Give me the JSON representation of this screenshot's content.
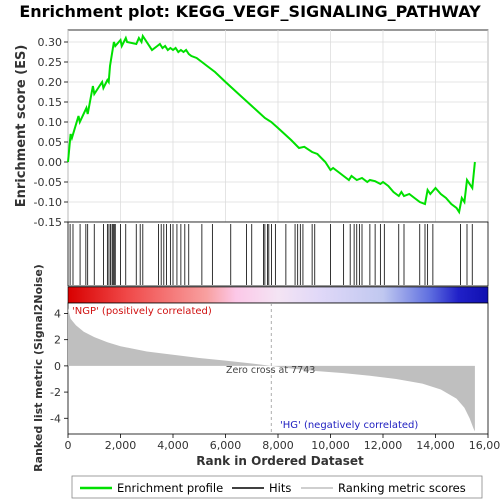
{
  "title": "Enrichment plot: KEGG_VEGF_SIGNALING_PATHWAY",
  "colors": {
    "profile": "#00e000",
    "hits": "#000000",
    "metric_fill": "#bfbfbf",
    "grid": "#dddddd"
  },
  "legend": {
    "items": [
      {
        "label": "Enrichment profile",
        "color": "#00e000"
      },
      {
        "label": "Hits",
        "color": "#000000"
      },
      {
        "label": "Ranking metric scores",
        "color": "#bfbfbf"
      }
    ]
  },
  "chart_data": [
    {
      "type": "line",
      "name": "enrichment-profile",
      "ylabel": "Enrichment score (ES)",
      "xlim": [
        0,
        16000
      ],
      "ylim": [
        -0.15,
        0.33
      ],
      "yticks": [
        0.3,
        0.25,
        0.2,
        0.15,
        0.1,
        0.05,
        0.0,
        -0.05,
        -0.1,
        -0.15
      ],
      "ytick_labels": [
        "0.30",
        "0.25",
        "0.20",
        "0.15",
        "0.10",
        "0.05",
        "0.00",
        "-0.05",
        "-0.10",
        "-0.15"
      ],
      "grid": true,
      "x": [
        0,
        100,
        150,
        400,
        450,
        700,
        750,
        950,
        1000,
        1300,
        1350,
        1500,
        1550,
        1600,
        1700,
        1750,
        1800,
        2000,
        2050,
        2200,
        2250,
        2600,
        2700,
        2800,
        2850,
        3200,
        3400,
        3500,
        3600,
        3700,
        3800,
        3900,
        4000,
        4100,
        4200,
        4300,
        4400,
        4500,
        4600,
        4700,
        4900,
        5100,
        5300,
        5600,
        6000,
        6500,
        7000,
        7500,
        7743,
        8000,
        8500,
        8800,
        9000,
        9300,
        9500,
        9800,
        10000,
        10100,
        10300,
        10500,
        10700,
        10800,
        11000,
        11200,
        11400,
        11500,
        11700,
        11900,
        12000,
        12200,
        12400,
        12500,
        12600,
        12700,
        12800,
        13000,
        13200,
        13400,
        13600,
        13700,
        13800,
        14000,
        14200,
        14400,
        14600,
        14800,
        14900,
        15000,
        15100,
        15200,
        15400,
        15500
      ],
      "y": [
        0.0,
        0.07,
        0.06,
        0.115,
        0.1,
        0.135,
        0.12,
        0.19,
        0.17,
        0.2,
        0.185,
        0.205,
        0.2,
        0.24,
        0.28,
        0.3,
        0.29,
        0.305,
        0.29,
        0.31,
        0.3,
        0.295,
        0.31,
        0.3,
        0.315,
        0.28,
        0.29,
        0.295,
        0.285,
        0.29,
        0.28,
        0.285,
        0.28,
        0.285,
        0.275,
        0.28,
        0.275,
        0.28,
        0.27,
        0.265,
        0.26,
        0.25,
        0.24,
        0.225,
        0.2,
        0.17,
        0.14,
        0.11,
        0.1,
        0.085,
        0.055,
        0.035,
        0.038,
        0.025,
        0.02,
        0.0,
        -0.02,
        -0.015,
        -0.025,
        -0.035,
        -0.045,
        -0.035,
        -0.045,
        -0.04,
        -0.05,
        -0.045,
        -0.048,
        -0.055,
        -0.05,
        -0.06,
        -0.075,
        -0.08,
        -0.085,
        -0.075,
        -0.085,
        -0.08,
        -0.09,
        -0.1,
        -0.105,
        -0.07,
        -0.08,
        -0.065,
        -0.08,
        -0.09,
        -0.105,
        -0.115,
        -0.125,
        -0.09,
        -0.1,
        -0.045,
        -0.065,
        0.0
      ]
    },
    {
      "type": "scatter",
      "name": "hits",
      "x": [
        80,
        190,
        460,
        680,
        750,
        1000,
        1350,
        1500,
        1560,
        1620,
        1680,
        1720,
        1760,
        1800,
        2000,
        2200,
        2600,
        2750,
        2850,
        3450,
        3550,
        3650,
        3750,
        3900,
        4000,
        4150,
        4300,
        4450,
        4600,
        5100,
        5500,
        6200,
        6800,
        7000,
        7450,
        7500,
        7600,
        7650,
        7750,
        7900,
        8300,
        8650,
        8750,
        8850,
        8950,
        9300,
        9400,
        10000,
        10500,
        10750,
        10900,
        11000,
        11100,
        11200,
        11500,
        11700,
        11900,
        12050,
        12600,
        12800,
        13400,
        13600,
        13700,
        13900,
        14950,
        15200,
        15400
      ]
    },
    {
      "type": "area",
      "name": "ranking-metric-scores",
      "ylabel": "Ranked list metric (Signal2Noise)",
      "xlabel": "Rank in Ordered Dataset",
      "xlim": [
        0,
        16000
      ],
      "ylim": [
        -5.2,
        4.8
      ],
      "xticks": [
        0,
        2000,
        4000,
        6000,
        8000,
        10000,
        12000,
        14000,
        16000
      ],
      "xtick_labels": [
        "0",
        "2,000",
        "4,000",
        "6,000",
        "8,000",
        "10,000",
        "12,000",
        "14,000",
        "16,000"
      ],
      "yticks": [
        4,
        2,
        0,
        -2,
        -4
      ],
      "ytick_labels": [
        "4",
        "2",
        "0",
        "-2",
        "-4"
      ],
      "x": [
        0,
        100,
        300,
        600,
        1000,
        1500,
        2000,
        3000,
        4000,
        5000,
        6000,
        7000,
        7743,
        8500,
        9500,
        10500,
        11500,
        12500,
        13500,
        14200,
        14800,
        15100,
        15300,
        15450,
        15500
      ],
      "y": [
        4.4,
        3.6,
        3.1,
        2.6,
        2.2,
        1.8,
        1.5,
        1.1,
        0.85,
        0.6,
        0.4,
        0.18,
        0.0,
        -0.2,
        -0.4,
        -0.55,
        -0.75,
        -1.0,
        -1.35,
        -1.8,
        -2.5,
        -3.2,
        -4.0,
        -4.8,
        -5.0
      ],
      "annotations": {
        "positive": "'NGP' (positively correlated)",
        "negative": "'HG' (negatively correlated)",
        "zero_cross": "Zero cross at 7743"
      },
      "zero_cross": 7743
    }
  ]
}
